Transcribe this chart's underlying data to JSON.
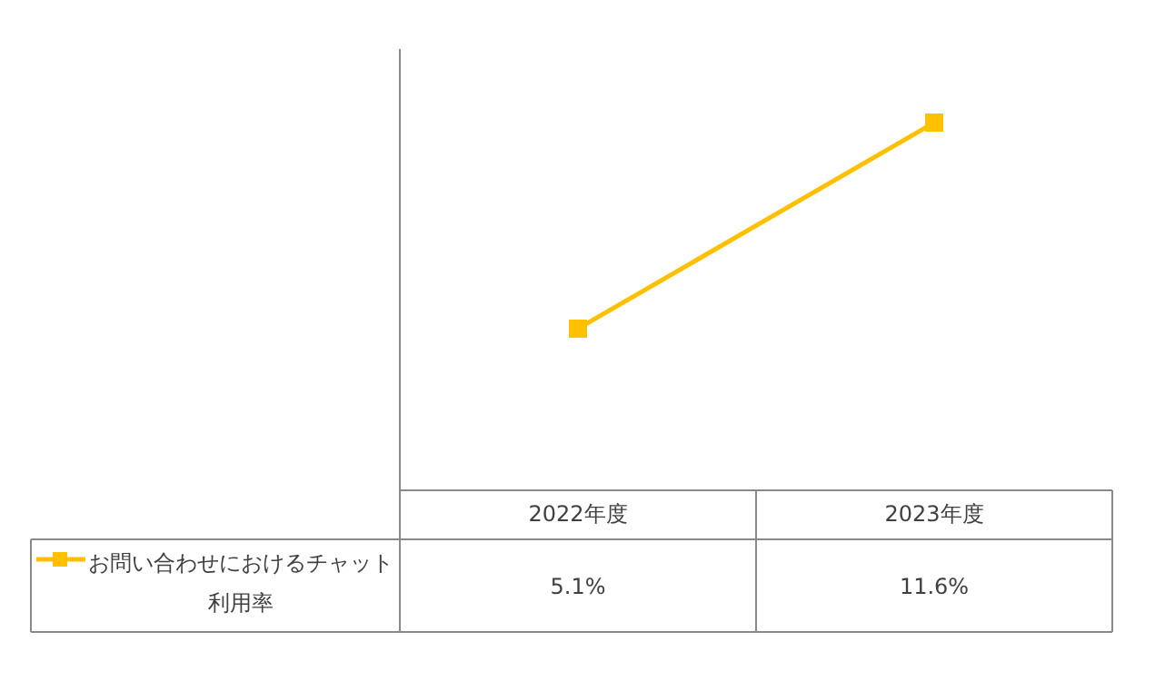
{
  "chart_data": {
    "type": "line",
    "categories": [
      "2022年度",
      "2023年度"
    ],
    "series": [
      {
        "name": "お問い合わせにおけるチャット利用率",
        "color": "#ffc000",
        "values": [
          5.1,
          11.6
        ],
        "value_labels": [
          "5.1%",
          "11.6%"
        ]
      }
    ],
    "marker": "square",
    "line_style": "solid",
    "legend": "bottom left"
  }
}
